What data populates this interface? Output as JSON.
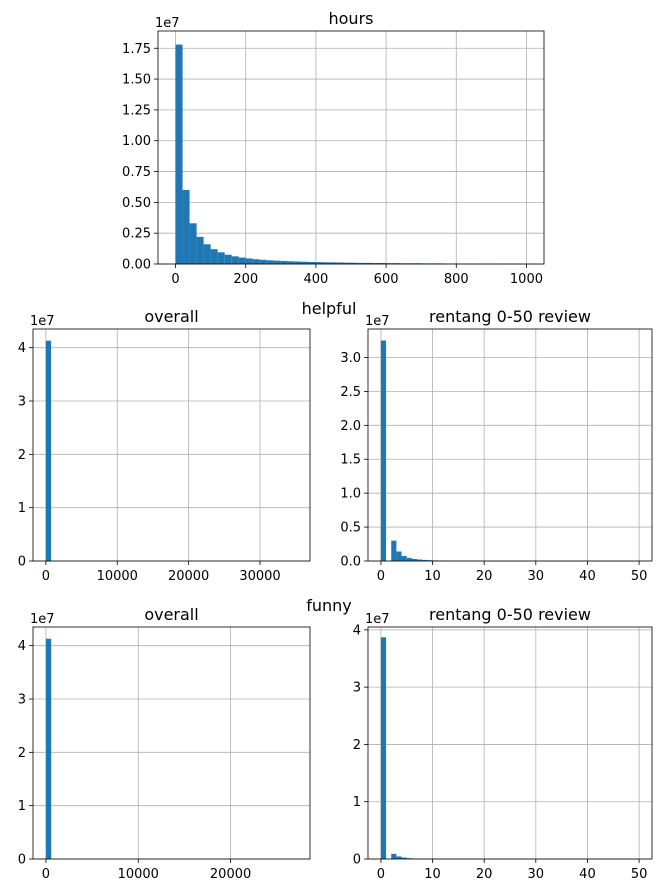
{
  "figure": {
    "suptitles": [
      "helpful",
      "funny"
    ]
  },
  "chart_data": [
    {
      "id": "hours",
      "type": "bar",
      "title": "hours",
      "offset_label": "1e7",
      "bar_color": "#1f77b4",
      "grid": true,
      "xlim": [
        -50,
        1050
      ],
      "ylim": [
        0,
        1.89
      ],
      "xticks": [
        0,
        200,
        400,
        600,
        800,
        1000
      ],
      "yticks": [
        0.0,
        0.25,
        0.5,
        0.75,
        1.0,
        1.25,
        1.5,
        1.75
      ],
      "ytick_labels": [
        "0.00",
        "0.25",
        "0.50",
        "0.75",
        "1.00",
        "1.25",
        "1.50",
        "1.75"
      ],
      "bin_start": 0,
      "bin_width": 20,
      "values": [
        1.78,
        0.6,
        0.33,
        0.22,
        0.16,
        0.12,
        0.095,
        0.075,
        0.062,
        0.052,
        0.045,
        0.039,
        0.034,
        0.03,
        0.027,
        0.024,
        0.022,
        0.02,
        0.018,
        0.016,
        0.015,
        0.014,
        0.013,
        0.012,
        0.011,
        0.01,
        0.009,
        0.009,
        0.008,
        0.008,
        0.007,
        0.007,
        0.006,
        0.006,
        0.006,
        0.005,
        0.005,
        0.005,
        0.004,
        0.004,
        0.004,
        0.004,
        0.003,
        0.003,
        0.003,
        0.003,
        0.003,
        0.002,
        0.002,
        0.002
      ]
    },
    {
      "id": "helpful-overall",
      "type": "bar",
      "title": "overall",
      "offset_label": "1e7",
      "bar_color": "#1f77b4",
      "grid": true,
      "xlim": [
        -1800,
        37000
      ],
      "ylim": [
        0,
        4.35
      ],
      "xticks": [
        0,
        10000,
        20000,
        30000
      ],
      "yticks": [
        0,
        1,
        2,
        3,
        4
      ],
      "ytick_labels": [
        "0",
        "1",
        "2",
        "3",
        "4"
      ],
      "bin_start": 0,
      "bin_width": 734,
      "values": [
        4.13
      ]
    },
    {
      "id": "helpful-range",
      "type": "bar",
      "title": "rentang 0-50 review",
      "offset_label": "1e7",
      "bar_color": "#1f77b4",
      "grid": true,
      "xlim": [
        -2.5,
        52.5
      ],
      "ylim": [
        0,
        3.42
      ],
      "xticks": [
        0,
        10,
        20,
        30,
        40,
        50
      ],
      "yticks": [
        0.0,
        0.5,
        1.0,
        1.5,
        2.0,
        2.5,
        3.0
      ],
      "ytick_labels": [
        "0.0",
        "0.5",
        "1.0",
        "1.5",
        "2.0",
        "2.5",
        "3.0"
      ],
      "bin_start": 0,
      "bin_width": 1,
      "values": [
        3.25,
        0.0,
        0.3,
        0.14,
        0.075,
        0.045,
        0.03,
        0.022,
        0.016,
        0.012,
        0.009,
        0.007,
        0.005,
        0.004,
        0.003,
        0.003,
        0.002,
        0.002,
        0.002,
        0.002,
        0.001,
        0.001,
        0.001,
        0.001,
        0.001,
        0.001,
        0.001,
        0.001,
        0.001,
        0.001,
        0.001,
        0.001,
        0.001,
        0.001,
        0.001,
        0.001,
        0.001,
        0.001,
        0.001,
        0.001,
        0.001,
        0.001,
        0.001,
        0.001,
        0.001,
        0.001,
        0.001,
        0.001,
        0.001,
        0.001
      ]
    },
    {
      "id": "funny-overall",
      "type": "bar",
      "title": "overall",
      "offset_label": "1e7",
      "bar_color": "#1f77b4",
      "grid": true,
      "xlim": [
        -1400,
        28600
      ],
      "ylim": [
        0,
        4.35
      ],
      "xticks": [
        0,
        10000,
        20000
      ],
      "yticks": [
        0,
        1,
        2,
        3,
        4
      ],
      "ytick_labels": [
        "0",
        "1",
        "2",
        "3",
        "4"
      ],
      "bin_start": 0,
      "bin_width": 570,
      "values": [
        4.13
      ]
    },
    {
      "id": "funny-range",
      "type": "bar",
      "title": "rentang 0-50 review",
      "offset_label": "1e7",
      "bar_color": "#1f77b4",
      "grid": true,
      "xlim": [
        -2.5,
        52.5
      ],
      "ylim": [
        0,
        4.05
      ],
      "xticks": [
        0,
        10,
        20,
        30,
        40,
        50
      ],
      "yticks": [
        0,
        1,
        2,
        3,
        4
      ],
      "ytick_labels": [
        "0",
        "1",
        "2",
        "3",
        "4"
      ],
      "bin_start": 0,
      "bin_width": 1,
      "values": [
        3.87,
        0.0,
        0.09,
        0.045,
        0.025,
        0.014,
        0.009,
        0.006,
        0.004,
        0.003,
        0.002,
        0.002,
        0.001,
        0.001,
        0.001,
        0.001,
        0.001,
        0.001,
        0.001,
        0.001,
        0.001,
        0.001,
        0.001,
        0.001,
        0.001,
        0.001,
        0.001,
        0.001,
        0.001,
        0.001,
        0.001,
        0.001,
        0.001,
        0.001,
        0.001,
        0.001,
        0.001,
        0.001,
        0.001,
        0.001,
        0.001,
        0.001,
        0.001,
        0.001,
        0.001,
        0.001,
        0.001,
        0.001,
        0.001,
        0.001
      ]
    }
  ]
}
